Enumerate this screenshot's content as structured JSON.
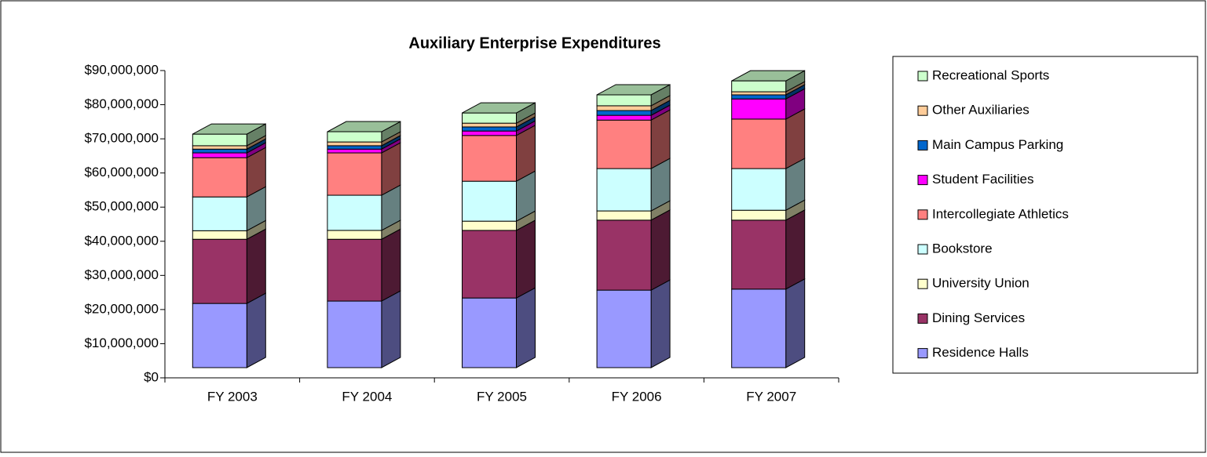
{
  "chart_data": {
    "type": "bar3d_stacked",
    "title": "Auxiliary Enterprise Expenditures",
    "categories": [
      "FY 2003",
      "FY 2004",
      "FY 2005",
      "FY 2006",
      "FY 2007"
    ],
    "series": [
      {
        "name": "Residence Halls",
        "color": "#9999ff",
        "values": [
          18800000,
          19500000,
          20400000,
          22700000,
          23000000
        ]
      },
      {
        "name": "Dining Services",
        "color": "#993366",
        "values": [
          18800000,
          18100000,
          19800000,
          20500000,
          20200000
        ]
      },
      {
        "name": "University Union",
        "color": "#ffffcc",
        "values": [
          2500000,
          2600000,
          2700000,
          2700000,
          2900000
        ]
      },
      {
        "name": "Bookstore",
        "color": "#ccffff",
        "values": [
          9900000,
          10300000,
          11700000,
          12400000,
          12200000
        ]
      },
      {
        "name": "Intercollegiate Athletics",
        "color": "#ff8080",
        "values": [
          11500000,
          12400000,
          13400000,
          14200000,
          14500000
        ]
      },
      {
        "name": "Student Facilities",
        "color": "#ff00ff",
        "values": [
          1400000,
          1100000,
          1300000,
          1400000,
          5900000
        ]
      },
      {
        "name": "Main Campus Parking",
        "color": "#0066cc",
        "values": [
          1100000,
          1000000,
          1200000,
          1400000,
          1200000
        ]
      },
      {
        "name": "Other Auxiliaries",
        "color": "#ffcc99",
        "values": [
          1000000,
          1100000,
          1100000,
          1400000,
          900000
        ]
      },
      {
        "name": "Recreational Sports",
        "color": "#ccffcc",
        "values": [
          3400000,
          3000000,
          3000000,
          3200000,
          3200000
        ]
      }
    ],
    "ylim": [
      0,
      90000000
    ],
    "yticks": [
      {
        "value": 0,
        "label": "$0"
      },
      {
        "value": 10000000,
        "label": "$10,000,000"
      },
      {
        "value": 20000000,
        "label": "$20,000,000"
      },
      {
        "value": 30000000,
        "label": "$30,000,000"
      },
      {
        "value": 40000000,
        "label": "$40,000,000"
      },
      {
        "value": 50000000,
        "label": "$50,000,000"
      },
      {
        "value": 60000000,
        "label": "$60,000,000"
      },
      {
        "value": 70000000,
        "label": "$70,000,000"
      },
      {
        "value": 80000000,
        "label": "$80,000,000"
      },
      {
        "value": 90000000,
        "label": "$90,000,000"
      }
    ],
    "legend": "right"
  }
}
